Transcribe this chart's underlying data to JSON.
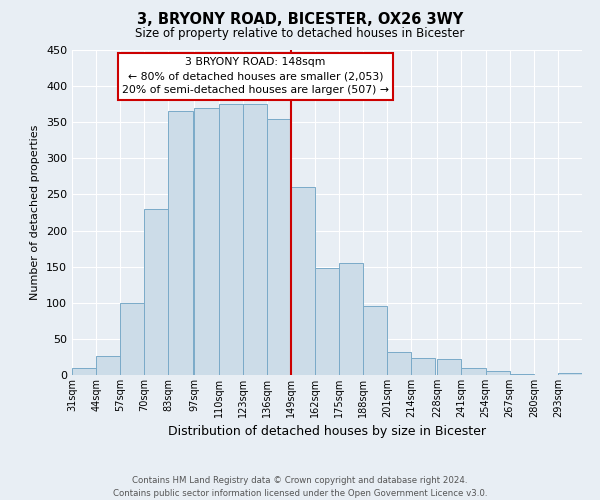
{
  "title": "3, BRYONY ROAD, BICESTER, OX26 3WY",
  "subtitle": "Size of property relative to detached houses in Bicester",
  "xlabel": "Distribution of detached houses by size in Bicester",
  "ylabel": "Number of detached properties",
  "bin_labels": [
    "31sqm",
    "44sqm",
    "57sqm",
    "70sqm",
    "83sqm",
    "97sqm",
    "110sqm",
    "123sqm",
    "136sqm",
    "149sqm",
    "162sqm",
    "175sqm",
    "188sqm",
    "201sqm",
    "214sqm",
    "228sqm",
    "241sqm",
    "254sqm",
    "267sqm",
    "280sqm",
    "293sqm"
  ],
  "bin_edges": [
    31,
    44,
    57,
    70,
    83,
    97,
    110,
    123,
    136,
    149,
    162,
    175,
    188,
    201,
    214,
    228,
    241,
    254,
    267,
    280,
    293
  ],
  "bar_heights": [
    10,
    26,
    100,
    230,
    365,
    370,
    375,
    375,
    355,
    260,
    148,
    155,
    95,
    32,
    23,
    22,
    10,
    5,
    2,
    0,
    3
  ],
  "bar_color": "#ccdce8",
  "bar_edge_color": "#7aaac8",
  "marker_value": 149,
  "marker_color": "#cc0000",
  "ylim": [
    0,
    450
  ],
  "yticks": [
    0,
    50,
    100,
    150,
    200,
    250,
    300,
    350,
    400,
    450
  ],
  "annotation_title": "3 BRYONY ROAD: 148sqm",
  "annotation_line1": "← 80% of detached houses are smaller (2,053)",
  "annotation_line2": "20% of semi-detached houses are larger (507) →",
  "footer_line1": "Contains HM Land Registry data © Crown copyright and database right 2024.",
  "footer_line2": "Contains public sector information licensed under the Open Government Licence v3.0.",
  "background_color": "#e8eef4",
  "grid_color": "#ffffff"
}
